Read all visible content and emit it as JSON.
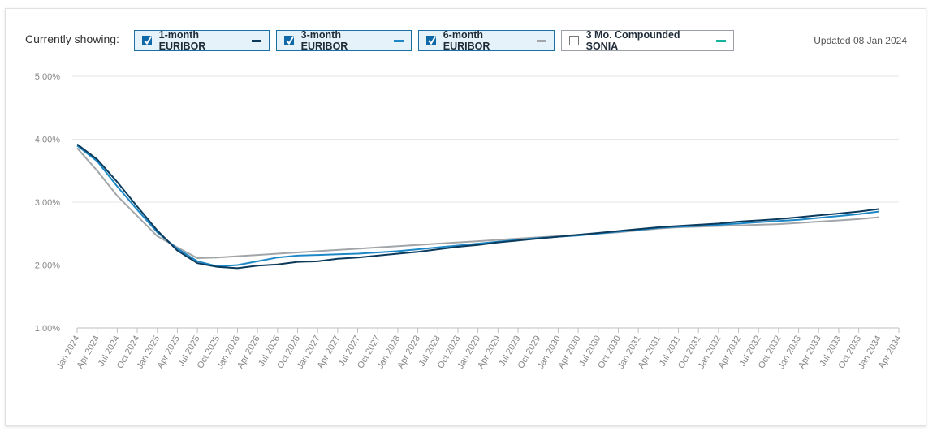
{
  "header": {
    "currently_showing": "Currently showing:",
    "updated": "Updated 08 Jan 2024"
  },
  "toggles": [
    {
      "label": "1-month EURIBOR",
      "checked": true,
      "color": "#0b3a5c"
    },
    {
      "label": "3-month EURIBOR",
      "checked": true,
      "color": "#1e88c6"
    },
    {
      "label": "6-month EURIBOR",
      "checked": true,
      "color": "#a3a6a9"
    },
    {
      "label": "3 Mo. Compounded SONIA",
      "checked": false,
      "color": "#17b29b"
    }
  ],
  "chart_data": {
    "type": "line",
    "ylim": [
      1.0,
      5.0
    ],
    "y_ticks": [
      "1.00%",
      "2.00%",
      "3.00%",
      "4.00%",
      "5.00%"
    ],
    "y_tick_values": [
      1,
      2,
      3,
      4,
      5
    ],
    "x_ticks": [
      "Jan 2024",
      "Apr 2024",
      "Jul 2024",
      "Oct 2024",
      "Jan 2025",
      "Apr 2025",
      "Jul 2025",
      "Oct 2025",
      "Jan 2026",
      "Apr 2026",
      "Jul 2026",
      "Oct 2026",
      "Jan 2027",
      "Apr 2027",
      "Jul 2027",
      "Oct 2027",
      "Jan 2028",
      "Apr 2028",
      "Jul 2028",
      "Oct 2028",
      "Jan 2029",
      "Apr 2029",
      "Jul 2029",
      "Oct 2029",
      "Jan 2030",
      "Apr 2030",
      "Jul 2030",
      "Oct 2030",
      "Jan 2031",
      "Apr 2031",
      "Jul 2031",
      "Oct 2031",
      "Jan 2032",
      "Apr 2032",
      "Jul 2032",
      "Oct 2032",
      "Jan 2033",
      "Apr 2033",
      "Jul 2033",
      "Oct 2033",
      "Jan 2034",
      "Apr 2034"
    ],
    "grid": true,
    "series": [
      {
        "name": "1-month EURIBOR",
        "color": "#0b3a5c",
        "values": [
          3.92,
          3.68,
          3.32,
          2.93,
          2.55,
          2.23,
          2.03,
          1.97,
          1.95,
          1.99,
          2.01,
          2.05,
          2.06,
          2.1,
          2.12,
          2.15,
          2.18,
          2.21,
          2.25,
          2.29,
          2.32,
          2.36,
          2.39,
          2.42,
          2.45,
          2.48,
          2.51,
          2.54,
          2.57,
          2.6,
          2.62,
          2.64,
          2.66,
          2.69,
          2.71,
          2.73,
          2.76,
          2.79,
          2.82,
          2.85,
          2.89
        ]
      },
      {
        "name": "3-month EURIBOR",
        "color": "#1e88c6",
        "values": [
          3.9,
          3.65,
          3.25,
          2.88,
          2.52,
          2.26,
          2.06,
          1.98,
          2.0,
          2.06,
          2.12,
          2.15,
          2.16,
          2.17,
          2.18,
          2.2,
          2.22,
          2.25,
          2.28,
          2.31,
          2.34,
          2.37,
          2.4,
          2.43,
          2.45,
          2.47,
          2.5,
          2.53,
          2.56,
          2.59,
          2.61,
          2.62,
          2.64,
          2.66,
          2.68,
          2.7,
          2.72,
          2.75,
          2.78,
          2.81,
          2.85
        ]
      },
      {
        "name": "6-month EURIBOR",
        "color": "#a3a6a9",
        "values": [
          3.86,
          3.5,
          3.1,
          2.78,
          2.46,
          2.28,
          2.11,
          2.12,
          2.14,
          2.16,
          2.18,
          2.2,
          2.22,
          2.24,
          2.26,
          2.28,
          2.3,
          2.32,
          2.34,
          2.36,
          2.38,
          2.4,
          2.42,
          2.44,
          2.46,
          2.48,
          2.5,
          2.52,
          2.55,
          2.58,
          2.6,
          2.61,
          2.62,
          2.63,
          2.64,
          2.65,
          2.67,
          2.69,
          2.71,
          2.73,
          2.76
        ]
      }
    ]
  }
}
